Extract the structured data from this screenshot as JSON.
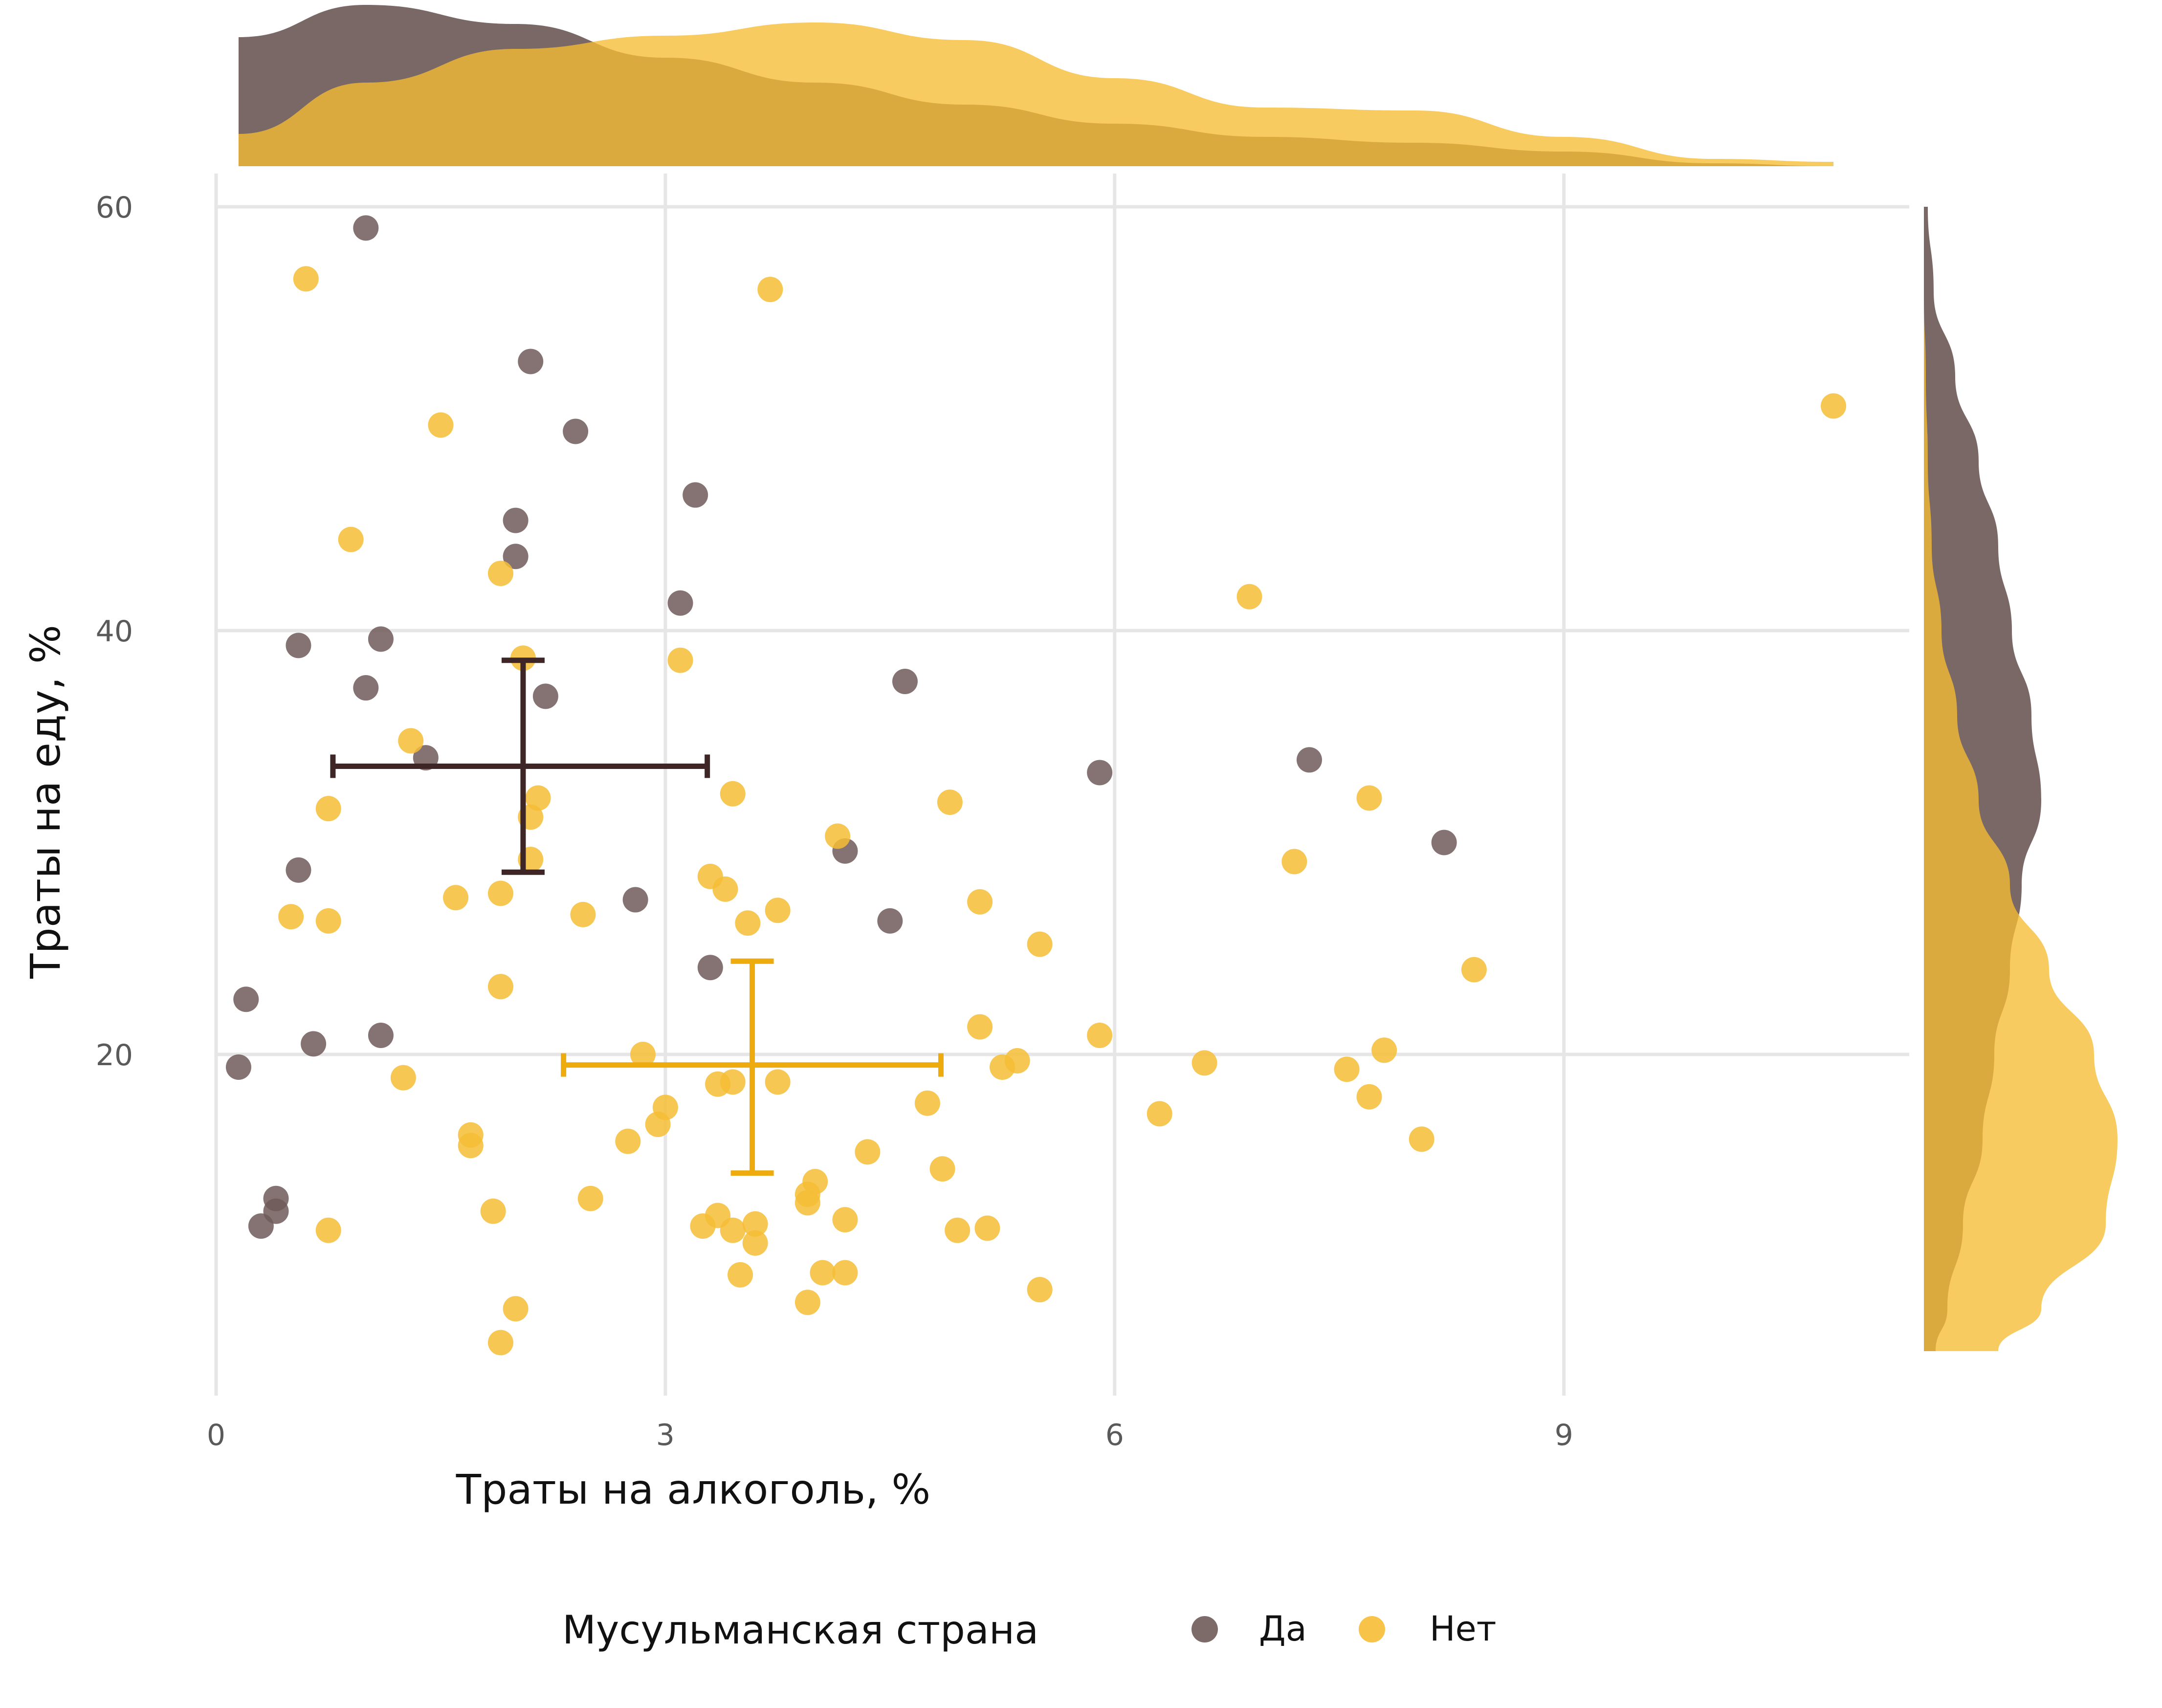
{
  "colors": {
    "yes": "#6e5b59",
    "no": "#f6bd35",
    "yes_error": "#3f2626",
    "no_error": "#eeab0e",
    "grid": "#e6e6e6"
  },
  "legend": {
    "title": "Мусульманская страна",
    "items": [
      {
        "label": "Да",
        "key": "yes"
      },
      {
        "label": "Нет",
        "key": "no"
      }
    ]
  },
  "chart_data": {
    "type": "scatter",
    "xlabel": "Траты на алкоголь, %",
    "ylabel": "Траты на еду, %",
    "xlim": [
      0,
      12
    ],
    "ylim": [
      6,
      62
    ],
    "xticks": [
      0,
      3,
      6,
      9
    ],
    "yticks": [
      20,
      40,
      60
    ],
    "grid": true,
    "legend_position": "bottom",
    "series": [
      {
        "name": "Да",
        "color_key": "yes",
        "points": [
          [
            1.0,
            59
          ],
          [
            2.1,
            52.7
          ],
          [
            2.4,
            49.4
          ],
          [
            3.2,
            46.4
          ],
          [
            2.0,
            45.2
          ],
          [
            2.0,
            43.5
          ],
          [
            3.1,
            41.3
          ],
          [
            1.1,
            39.6
          ],
          [
            0.55,
            39.3
          ],
          [
            1.0,
            37.3
          ],
          [
            2.2,
            36.9
          ],
          [
            4.6,
            37.6
          ],
          [
            1.4,
            34.0
          ],
          [
            5.9,
            33.3
          ],
          [
            7.3,
            33.9
          ],
          [
            8.2,
            30.0
          ],
          [
            0.55,
            28.7
          ],
          [
            4.2,
            29.6
          ],
          [
            2.8,
            27.3
          ],
          [
            4.5,
            26.3
          ],
          [
            3.3,
            24.1
          ],
          [
            0.2,
            22.6
          ],
          [
            0.65,
            20.5
          ],
          [
            1.1,
            20.9
          ],
          [
            0.15,
            19.4
          ],
          [
            0.4,
            13.2
          ],
          [
            0.4,
            12.6
          ],
          [
            0.3,
            11.9
          ]
        ],
        "mean": {
          "x": 2.05,
          "y": 33.6
        },
        "x_error": [
          0.78,
          3.28
        ],
        "y_error": [
          28.6,
          38.6
        ]
      },
      {
        "name": "Нет",
        "color_key": "no",
        "points": [
          [
            0.6,
            56.6
          ],
          [
            3.7,
            56.1
          ],
          [
            10.8,
            50.6
          ],
          [
            1.5,
            49.7
          ],
          [
            0.9,
            44.3
          ],
          [
            1.9,
            42.7
          ],
          [
            6.9,
            41.6
          ],
          [
            2.05,
            38.7
          ],
          [
            3.1,
            38.6
          ],
          [
            1.3,
            34.8
          ],
          [
            3.45,
            32.3
          ],
          [
            2.15,
            32.1
          ],
          [
            0.75,
            31.6
          ],
          [
            4.9,
            31.9
          ],
          [
            7.7,
            32.1
          ],
          [
            2.1,
            31.2
          ],
          [
            4.15,
            30.3
          ],
          [
            7.2,
            29.1
          ],
          [
            2.1,
            29.2
          ],
          [
            3.3,
            28.4
          ],
          [
            3.4,
            27.8
          ],
          [
            1.9,
            27.6
          ],
          [
            1.6,
            27.4
          ],
          [
            5.1,
            27.2
          ],
          [
            3.75,
            26.8
          ],
          [
            2.45,
            26.6
          ],
          [
            0.5,
            26.5
          ],
          [
            0.75,
            26.3
          ],
          [
            3.55,
            26.2
          ],
          [
            5.5,
            25.2
          ],
          [
            8.4,
            24.0
          ],
          [
            1.9,
            23.2
          ],
          [
            5.1,
            21.3
          ],
          [
            5.9,
            20.9
          ],
          [
            2.85,
            20.0
          ],
          [
            7.8,
            20.2
          ],
          [
            6.6,
            19.6
          ],
          [
            5.35,
            19.7
          ],
          [
            5.25,
            19.4
          ],
          [
            7.55,
            19.3
          ],
          [
            1.25,
            18.9
          ],
          [
            3.75,
            18.7
          ],
          [
            3.45,
            18.7
          ],
          [
            3.35,
            18.6
          ],
          [
            7.7,
            18.0
          ],
          [
            3.0,
            17.5
          ],
          [
            4.75,
            17.7
          ],
          [
            6.3,
            17.2
          ],
          [
            2.95,
            16.7
          ],
          [
            1.7,
            16.2
          ],
          [
            1.7,
            15.7
          ],
          [
            2.75,
            15.9
          ],
          [
            8.05,
            16.0
          ],
          [
            4.35,
            15.4
          ],
          [
            4.85,
            14.6
          ],
          [
            4.0,
            14.0
          ],
          [
            3.95,
            13.4
          ],
          [
            2.5,
            13.2
          ],
          [
            3.95,
            13.0
          ],
          [
            1.85,
            12.6
          ],
          [
            3.35,
            12.4
          ],
          [
            4.2,
            12.2
          ],
          [
            3.6,
            12.0
          ],
          [
            3.25,
            11.9
          ],
          [
            3.45,
            11.7
          ],
          [
            0.75,
            11.7
          ],
          [
            4.95,
            11.7
          ],
          [
            5.15,
            11.8
          ],
          [
            3.6,
            11.1
          ],
          [
            4.05,
            9.7
          ],
          [
            4.2,
            9.7
          ],
          [
            3.5,
            9.6
          ],
          [
            5.5,
            8.9
          ],
          [
            3.95,
            8.3
          ],
          [
            2.0,
            8.0
          ],
          [
            1.9,
            6.4
          ]
        ],
        "mean": {
          "x": 3.58,
          "y": 19.5
        },
        "x_error": [
          2.32,
          4.84
        ],
        "y_error": [
          14.4,
          24.4
        ]
      }
    ],
    "marginal_density_x": {
      "x": [
        0.15,
        1,
        2,
        3,
        4,
        5,
        6,
        7,
        8,
        9,
        10,
        10.8
      ],
      "Да": [
        0.88,
        1.1,
        0.97,
        0.74,
        0.57,
        0.42,
        0.29,
        0.2,
        0.16,
        0.1,
        0.02,
        0.0
      ],
      "Нет": [
        0.22,
        0.57,
        0.8,
        0.89,
        0.98,
        0.86,
        0.6,
        0.4,
        0.38,
        0.2,
        0.05,
        0.03
      ]
    },
    "marginal_density_y": {
      "y": [
        60,
        56,
        52,
        48,
        44,
        40,
        36,
        32,
        28,
        24,
        20,
        16,
        12,
        8,
        6
      ],
      "Да": [
        0.02,
        0.05,
        0.16,
        0.28,
        0.38,
        0.45,
        0.55,
        0.6,
        0.5,
        0.44,
        0.36,
        0.3,
        0.2,
        0.12,
        0.06
      ],
      "Нет": [
        0.0,
        0.0,
        0.01,
        0.02,
        0.04,
        0.09,
        0.17,
        0.28,
        0.44,
        0.64,
        0.87,
        0.99,
        0.93,
        0.6,
        0.38
      ]
    }
  }
}
